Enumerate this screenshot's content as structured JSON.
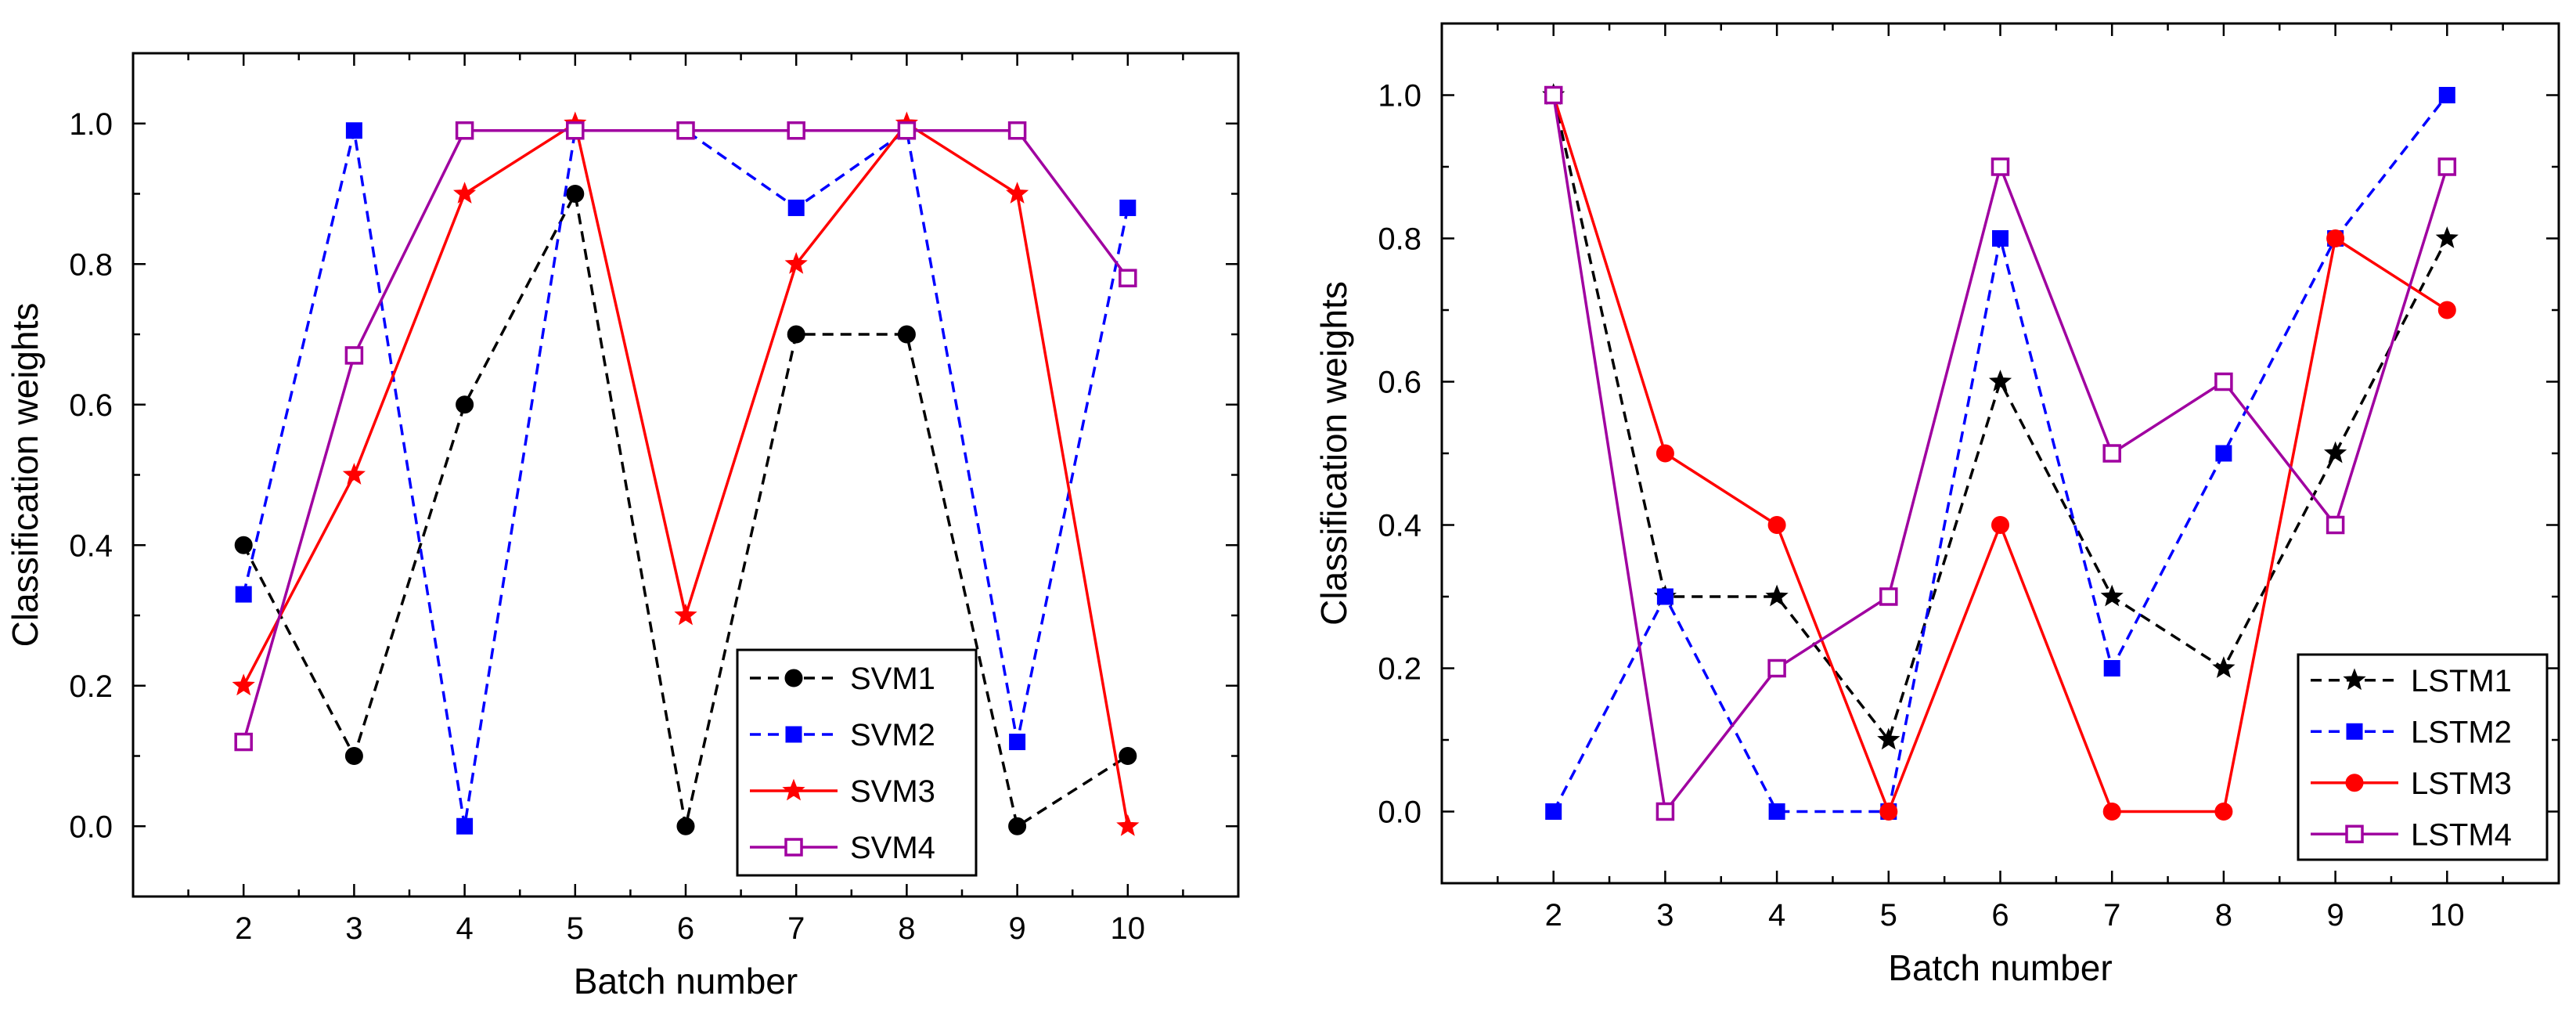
{
  "chart_data": [
    {
      "type": "line",
      "xlabel": "Batch number",
      "ylabel": "Classification weights",
      "xlim": [
        1,
        11
      ],
      "ylim": [
        -0.1,
        1.1
      ],
      "grid": false,
      "legend_position": "bottom-right",
      "x_ticks": [
        "2",
        "3",
        "4",
        "5",
        "6",
        "7",
        "8",
        "9",
        "10"
      ],
      "y_ticks": [
        "0.0",
        "0.2",
        "0.4",
        "0.6",
        "0.8",
        "1.0"
      ],
      "x": [
        2,
        3,
        4,
        5,
        6,
        7,
        8,
        9,
        10
      ],
      "series": [
        {
          "name": "SVM1",
          "color": "#000000",
          "dash": "dashed",
          "marker": "circle",
          "values": [
            0.4,
            0.1,
            0.6,
            0.9,
            0.0,
            0.7,
            0.7,
            0.0,
            0.1
          ]
        },
        {
          "name": "SVM2",
          "color": "#0000ff",
          "dash": "dashed",
          "marker": "square",
          "values": [
            0.33,
            0.99,
            0.0,
            0.99,
            0.99,
            0.88,
            0.99,
            0.12,
            0.88
          ]
        },
        {
          "name": "SVM3",
          "color": "#ff0000",
          "dash": "solid",
          "marker": "star",
          "values": [
            0.2,
            0.5,
            0.9,
            1.0,
            0.3,
            0.8,
            1.0,
            0.9,
            0.0
          ]
        },
        {
          "name": "SVM4",
          "color": "#a000a0",
          "dash": "solid",
          "marker": "open-square",
          "values": [
            0.12,
            0.67,
            0.99,
            0.99,
            0.99,
            0.99,
            0.99,
            0.99,
            0.78
          ]
        }
      ]
    },
    {
      "type": "line",
      "xlabel": "Batch number",
      "ylabel": "Classification weights",
      "xlim": [
        1,
        11
      ],
      "ylim": [
        -0.1,
        1.1
      ],
      "grid": false,
      "legend_position": "bottom-right",
      "x_ticks": [
        "2",
        "3",
        "4",
        "5",
        "6",
        "7",
        "8",
        "9",
        "10"
      ],
      "y_ticks": [
        "0.0",
        "0.2",
        "0.4",
        "0.6",
        "0.8",
        "1.0"
      ],
      "x": [
        2,
        3,
        4,
        5,
        6,
        7,
        8,
        9,
        10
      ],
      "series": [
        {
          "name": "LSTM1",
          "color": "#000000",
          "dash": "dashed",
          "marker": "star",
          "values": [
            1.0,
            0.3,
            0.3,
            0.1,
            0.6,
            0.3,
            0.2,
            0.5,
            0.8
          ]
        },
        {
          "name": "LSTM2",
          "color": "#0000ff",
          "dash": "dashed",
          "marker": "square",
          "values": [
            0.0,
            0.3,
            0.0,
            0.0,
            0.8,
            0.2,
            0.5,
            0.8,
            1.0
          ]
        },
        {
          "name": "LSTM3",
          "color": "#ff0000",
          "dash": "solid",
          "marker": "circle",
          "values": [
            1.0,
            0.5,
            0.4,
            0.0,
            0.4,
            0.0,
            0.0,
            0.8,
            0.7
          ]
        },
        {
          "name": "LSTM4",
          "color": "#a000a0",
          "dash": "solid",
          "marker": "open-square",
          "values": [
            1.0,
            0.0,
            0.2,
            0.3,
            0.9,
            0.5,
            0.6,
            0.4,
            0.9
          ]
        }
      ]
    }
  ]
}
